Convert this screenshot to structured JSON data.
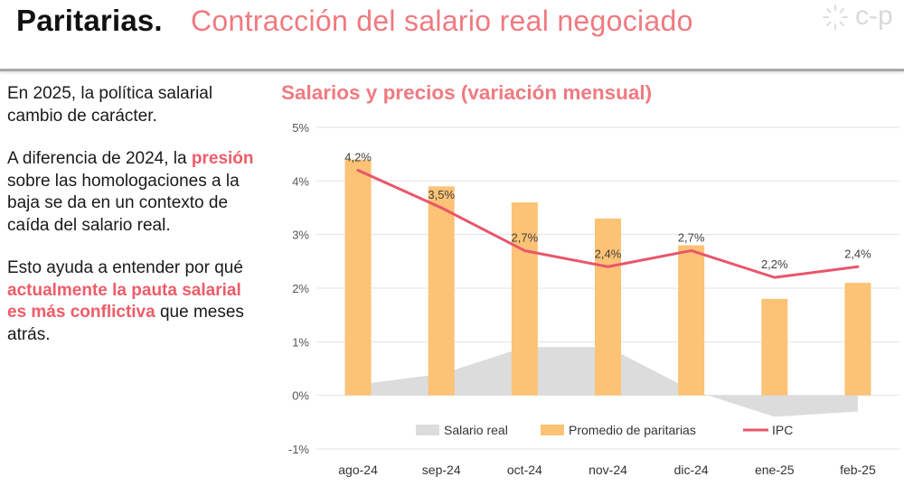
{
  "header": {
    "title_bold": "Paritarias.",
    "title_rest": "Contracción del salario real negociado",
    "logo_text": "c-p",
    "accent_color": "#f07a80"
  },
  "left_panel": {
    "p1": "En 2025, la política salarial cambio de carácter.",
    "p2_a": "A diferencia de 2024, la ",
    "p2_hl": "presión",
    "p2_b": " sobre las homologaciones a la baja se da en un contexto de caída del salario real.",
    "p3_a": "Esto ayuda a entender por qué ",
    "p3_hl": "actualmente la pauta salarial es más conflictiva",
    "p3_b": " que meses atrás.",
    "highlight_color": "#ee5c68"
  },
  "chart_data": {
    "type": "bar",
    "title": "Salarios y precios (variación mensual)",
    "categories": [
      "ago-24",
      "sep-24",
      "oct-24",
      "nov-24",
      "dic-24",
      "ene-25",
      "feb-25"
    ],
    "ylim": [
      -1,
      5
    ],
    "yticks": [
      "-1%",
      "0%",
      "1%",
      "2%",
      "3%",
      "4%",
      "5%"
    ],
    "grid": true,
    "legend_position": "bottom",
    "series": [
      {
        "name": "Salario real",
        "kind": "area",
        "color": "#dcdcdc",
        "values": [
          0.2,
          0.4,
          0.9,
          0.9,
          0.1,
          -0.4,
          -0.3
        ]
      },
      {
        "name": "Promedio de paritarias",
        "kind": "bar",
        "color": "#fcc275",
        "values": [
          4.4,
          3.9,
          3.6,
          3.3,
          2.8,
          1.8,
          2.1
        ]
      },
      {
        "name": "IPC",
        "kind": "line",
        "color": "#e8566a",
        "values": [
          4.2,
          3.5,
          2.7,
          2.4,
          2.7,
          2.2,
          2.4
        ],
        "labels": [
          "4,2%",
          "3,5%",
          "2,7%",
          "2,4%",
          "2,7%",
          "2,2%",
          "2,4%"
        ]
      }
    ]
  }
}
